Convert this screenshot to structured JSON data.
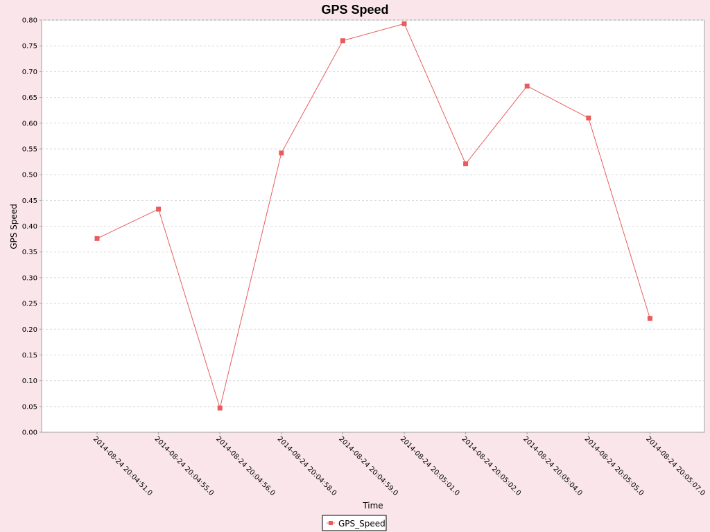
{
  "chart_data": {
    "type": "line",
    "title": "GPS Speed",
    "xlabel": "Time",
    "ylabel": "GPS Speed",
    "categories": [
      "2014-08-24 20:04:51.0",
      "2014-08-24 20:04:55.0",
      "2014-08-24 20:04:56.0",
      "2014-08-24 20:04:58.0",
      "2014-08-24 20:04:59.0",
      "2014-08-24 20:05:01.0",
      "2014-08-24 20:05:02.0",
      "2014-08-24 20:05:04.0",
      "2014-08-24 20:05:05.0",
      "2014-08-24 20:05:07.0"
    ],
    "series": [
      {
        "name": "GPS_Speed",
        "color": "#e85c5c",
        "values": [
          0.376,
          0.433,
          0.047,
          0.542,
          0.76,
          0.793,
          0.521,
          0.672,
          0.61,
          0.221
        ]
      }
    ],
    "ylim": [
      0,
      0.8
    ],
    "yticks": [
      "0.00",
      "0.05",
      "0.10",
      "0.15",
      "0.20",
      "0.25",
      "0.30",
      "0.35",
      "0.40",
      "0.45",
      "0.50",
      "0.55",
      "0.60",
      "0.65",
      "0.70",
      "0.75",
      "0.80"
    ],
    "grid": true,
    "legend_position": "bottom"
  },
  "colors": {
    "background": "#fae6ea",
    "plot_background": "#ffffff",
    "grid": "#d8d8d8",
    "axis": "#a0a0a0"
  }
}
